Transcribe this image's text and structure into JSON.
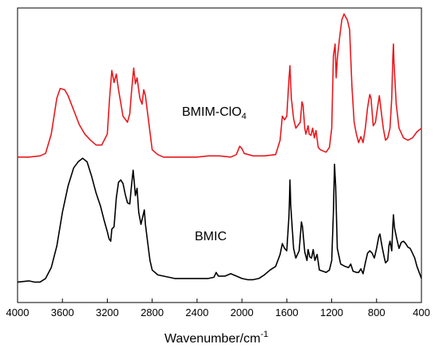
{
  "chart_data": {
    "type": "line",
    "xlabel": "Wavenumber/cm",
    "xlabel_sup": "-1",
    "xlim": [
      4000,
      400
    ],
    "x_reversed": true,
    "x_ticks": [
      4000,
      3600,
      3200,
      2800,
      2400,
      2000,
      1600,
      1200,
      800,
      400
    ],
    "ylabel": "",
    "y_ticks_shown": false,
    "grid": false,
    "series": [
      {
        "name": "BMIM-ClO",
        "name_sub": "4",
        "color": "#e8191e",
        "offset": 1.0,
        "points": [
          [
            4000,
            0.06
          ],
          [
            3900,
            0.06
          ],
          [
            3800,
            0.07
          ],
          [
            3750,
            0.09
          ],
          [
            3700,
            0.25
          ],
          [
            3650,
            0.55
          ],
          [
            3620,
            0.63
          ],
          [
            3580,
            0.62
          ],
          [
            3550,
            0.57
          ],
          [
            3500,
            0.45
          ],
          [
            3450,
            0.33
          ],
          [
            3400,
            0.25
          ],
          [
            3350,
            0.2
          ],
          [
            3300,
            0.16
          ],
          [
            3250,
            0.16
          ],
          [
            3200,
            0.25
          ],
          [
            3180,
            0.55
          ],
          [
            3160,
            0.78
          ],
          [
            3140,
            0.68
          ],
          [
            3120,
            0.75
          ],
          [
            3100,
            0.62
          ],
          [
            3060,
            0.4
          ],
          [
            3020,
            0.35
          ],
          [
            3000,
            0.42
          ],
          [
            2985,
            0.6
          ],
          [
            2965,
            0.8
          ],
          [
            2950,
            0.67
          ],
          [
            2935,
            0.72
          ],
          [
            2910,
            0.55
          ],
          [
            2890,
            0.5
          ],
          [
            2875,
            0.62
          ],
          [
            2860,
            0.57
          ],
          [
            2840,
            0.42
          ],
          [
            2800,
            0.12
          ],
          [
            2750,
            0.08
          ],
          [
            2700,
            0.06
          ],
          [
            2600,
            0.06
          ],
          [
            2500,
            0.06
          ],
          [
            2400,
            0.06
          ],
          [
            2300,
            0.07
          ],
          [
            2200,
            0.07
          ],
          [
            2100,
            0.06
          ],
          [
            2050,
            0.08
          ],
          [
            2020,
            0.15
          ],
          [
            2000,
            0.13
          ],
          [
            1980,
            0.09
          ],
          [
            1900,
            0.07
          ],
          [
            1800,
            0.07
          ],
          [
            1700,
            0.08
          ],
          [
            1660,
            0.2
          ],
          [
            1640,
            0.4
          ],
          [
            1620,
            0.37
          ],
          [
            1600,
            0.4
          ],
          [
            1580,
            0.72
          ],
          [
            1572,
            0.82
          ],
          [
            1560,
            0.55
          ],
          [
            1540,
            0.38
          ],
          [
            1520,
            0.3
          ],
          [
            1480,
            0.35
          ],
          [
            1465,
            0.52
          ],
          [
            1455,
            0.49
          ],
          [
            1440,
            0.3
          ],
          [
            1430,
            0.25
          ],
          [
            1410,
            0.32
          ],
          [
            1400,
            0.25
          ],
          [
            1385,
            0.24
          ],
          [
            1370,
            0.3
          ],
          [
            1355,
            0.22
          ],
          [
            1340,
            0.28
          ],
          [
            1320,
            0.14
          ],
          [
            1300,
            0.12
          ],
          [
            1250,
            0.1
          ],
          [
            1220,
            0.14
          ],
          [
            1200,
            0.3
          ],
          [
            1185,
            0.9
          ],
          [
            1170,
            1.0
          ],
          [
            1160,
            0.72
          ],
          [
            1150,
            0.88
          ],
          [
            1130,
            1.05
          ],
          [
            1110,
            1.2
          ],
          [
            1090,
            1.25
          ],
          [
            1060,
            1.2
          ],
          [
            1040,
            1.12
          ],
          [
            1020,
            0.65
          ],
          [
            1000,
            0.35
          ],
          [
            980,
            0.25
          ],
          [
            960,
            0.18
          ],
          [
            940,
            0.23
          ],
          [
            920,
            0.18
          ],
          [
            900,
            0.3
          ],
          [
            880,
            0.47
          ],
          [
            860,
            0.58
          ],
          [
            850,
            0.55
          ],
          [
            830,
            0.32
          ],
          [
            810,
            0.35
          ],
          [
            790,
            0.48
          ],
          [
            775,
            0.57
          ],
          [
            760,
            0.45
          ],
          [
            740,
            0.3
          ],
          [
            720,
            0.2
          ],
          [
            700,
            0.22
          ],
          [
            680,
            0.3
          ],
          [
            665,
            0.55
          ],
          [
            655,
            0.9
          ],
          [
            650,
            1.0
          ],
          [
            645,
            0.85
          ],
          [
            625,
            0.5
          ],
          [
            600,
            0.3
          ],
          [
            560,
            0.22
          ],
          [
            520,
            0.2
          ],
          [
            480,
            0.22
          ],
          [
            440,
            0.27
          ],
          [
            400,
            0.3
          ]
        ]
      },
      {
        "name": "BMIC",
        "color": "#000000",
        "offset": 0.0,
        "points": [
          [
            4000,
            0.02
          ],
          [
            3900,
            0.03
          ],
          [
            3850,
            0.02
          ],
          [
            3800,
            0.02
          ],
          [
            3750,
            0.05
          ],
          [
            3700,
            0.14
          ],
          [
            3650,
            0.32
          ],
          [
            3600,
            0.6
          ],
          [
            3550,
            0.82
          ],
          [
            3500,
            0.97
          ],
          [
            3460,
            1.02
          ],
          [
            3420,
            1.05
          ],
          [
            3380,
            1.02
          ],
          [
            3340,
            0.9
          ],
          [
            3300,
            0.76
          ],
          [
            3260,
            0.65
          ],
          [
            3230,
            0.54
          ],
          [
            3200,
            0.44
          ],
          [
            3185,
            0.38
          ],
          [
            3170,
            0.36
          ],
          [
            3160,
            0.46
          ],
          [
            3140,
            0.48
          ],
          [
            3120,
            0.72
          ],
          [
            3100,
            0.85
          ],
          [
            3080,
            0.87
          ],
          [
            3060,
            0.84
          ],
          [
            3040,
            0.75
          ],
          [
            3020,
            0.68
          ],
          [
            3000,
            0.67
          ],
          [
            2985,
            0.82
          ],
          [
            2970,
            0.95
          ],
          [
            2960,
            0.85
          ],
          [
            2950,
            0.74
          ],
          [
            2935,
            0.8
          ],
          [
            2920,
            0.6
          ],
          [
            2900,
            0.5
          ],
          [
            2880,
            0.58
          ],
          [
            2870,
            0.62
          ],
          [
            2860,
            0.5
          ],
          [
            2840,
            0.35
          ],
          [
            2820,
            0.2
          ],
          [
            2800,
            0.12
          ],
          [
            2750,
            0.08
          ],
          [
            2700,
            0.07
          ],
          [
            2650,
            0.06
          ],
          [
            2600,
            0.05
          ],
          [
            2500,
            0.05
          ],
          [
            2400,
            0.05
          ],
          [
            2300,
            0.05
          ],
          [
            2250,
            0.06
          ],
          [
            2230,
            0.1
          ],
          [
            2210,
            0.07
          ],
          [
            2150,
            0.07
          ],
          [
            2100,
            0.09
          ],
          [
            2050,
            0.07
          ],
          [
            2000,
            0.05
          ],
          [
            1950,
            0.04
          ],
          [
            1900,
            0.04
          ],
          [
            1850,
            0.05
          ],
          [
            1800,
            0.08
          ],
          [
            1750,
            0.12
          ],
          [
            1700,
            0.15
          ],
          [
            1660,
            0.25
          ],
          [
            1640,
            0.34
          ],
          [
            1620,
            0.3
          ],
          [
            1600,
            0.28
          ],
          [
            1580,
            0.58
          ],
          [
            1572,
            0.87
          ],
          [
            1565,
            0.65
          ],
          [
            1540,
            0.3
          ],
          [
            1520,
            0.22
          ],
          [
            1490,
            0.28
          ],
          [
            1470,
            0.52
          ],
          [
            1460,
            0.48
          ],
          [
            1440,
            0.27
          ],
          [
            1420,
            0.2
          ],
          [
            1410,
            0.29
          ],
          [
            1395,
            0.23
          ],
          [
            1380,
            0.22
          ],
          [
            1365,
            0.29
          ],
          [
            1350,
            0.2
          ],
          [
            1330,
            0.25
          ],
          [
            1310,
            0.12
          ],
          [
            1280,
            0.11
          ],
          [
            1250,
            0.1
          ],
          [
            1220,
            0.12
          ],
          [
            1200,
            0.2
          ],
          [
            1185,
            0.6
          ],
          [
            1175,
            1.0
          ],
          [
            1165,
            0.82
          ],
          [
            1150,
            0.3
          ],
          [
            1120,
            0.17
          ],
          [
            1080,
            0.15
          ],
          [
            1050,
            0.14
          ],
          [
            1030,
            0.17
          ],
          [
            1010,
            0.11
          ],
          [
            980,
            0.1
          ],
          [
            960,
            0.1
          ],
          [
            940,
            0.13
          ],
          [
            920,
            0.09
          ],
          [
            900,
            0.18
          ],
          [
            880,
            0.26
          ],
          [
            860,
            0.28
          ],
          [
            840,
            0.26
          ],
          [
            820,
            0.22
          ],
          [
            800,
            0.3
          ],
          [
            780,
            0.4
          ],
          [
            770,
            0.42
          ],
          [
            750,
            0.31
          ],
          [
            730,
            0.22
          ],
          [
            720,
            0.18
          ],
          [
            700,
            0.2
          ],
          [
            690,
            0.32
          ],
          [
            680,
            0.36
          ],
          [
            665,
            0.28
          ],
          [
            655,
            0.5
          ],
          [
            650,
            0.58
          ],
          [
            640,
            0.47
          ],
          [
            620,
            0.38
          ],
          [
            600,
            0.3
          ],
          [
            580,
            0.35
          ],
          [
            560,
            0.36
          ],
          [
            540,
            0.34
          ],
          [
            520,
            0.31
          ],
          [
            500,
            0.3
          ],
          [
            480,
            0.26
          ],
          [
            460,
            0.22
          ],
          [
            440,
            0.15
          ],
          [
            420,
            0.1
          ],
          [
            400,
            0.05
          ]
        ]
      }
    ]
  }
}
